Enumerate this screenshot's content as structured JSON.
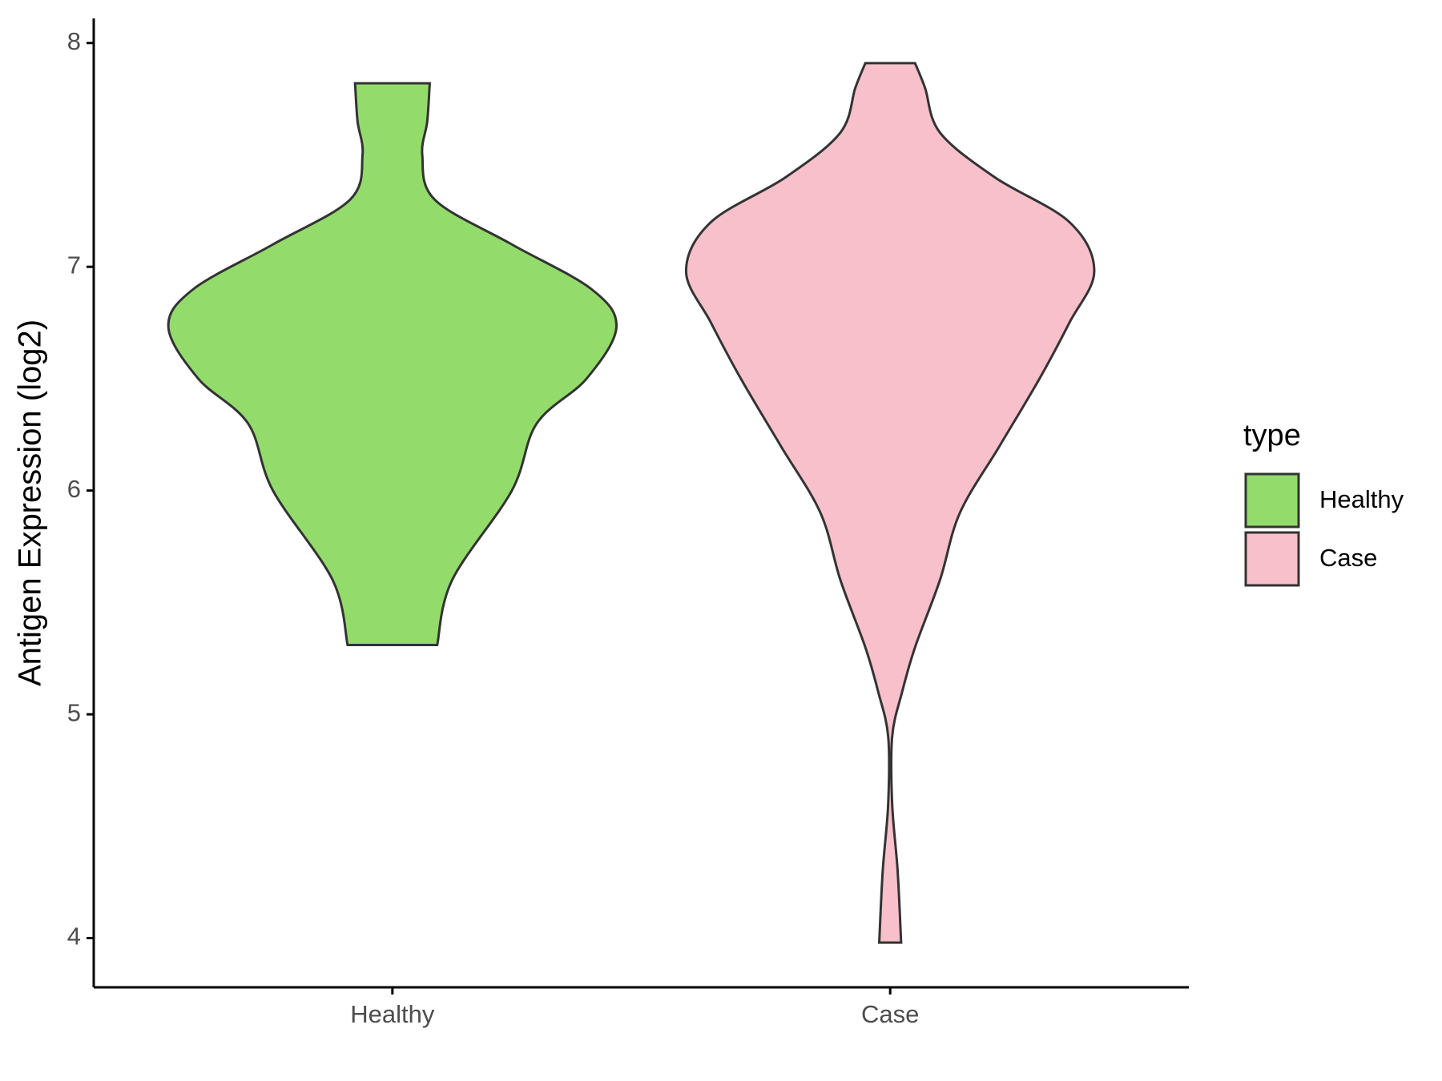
{
  "chart_data": {
    "type": "violin",
    "ylabel": "Antigen Expression (log2)",
    "categories": [
      "Healthy",
      "Case"
    ],
    "series": [
      {
        "name": "Healthy",
        "color": "#93dc6b",
        "y": [
          5.31,
          5.6,
          6.0,
          6.3,
          6.5,
          6.73,
          6.9,
          7.1,
          7.3,
          7.5,
          7.65,
          7.82
        ],
        "widths": [
          0.09,
          0.12,
          0.24,
          0.29,
          0.39,
          0.45,
          0.4,
          0.24,
          0.085,
          0.06,
          0.07,
          0.075
        ]
      },
      {
        "name": "Case",
        "color": "#f7c0cb",
        "y": [
          3.98,
          4.3,
          4.6,
          4.9,
          5.1,
          5.3,
          5.6,
          5.9,
          6.2,
          6.5,
          6.75,
          6.98,
          7.2,
          7.4,
          7.6,
          7.8,
          7.91
        ],
        "widths": [
          0.022,
          0.015,
          0.004,
          0.004,
          0.024,
          0.05,
          0.1,
          0.14,
          0.22,
          0.3,
          0.36,
          0.41,
          0.36,
          0.21,
          0.1,
          0.07,
          0.05
        ]
      }
    ],
    "ylim": [
      3.78,
      8.11
    ],
    "yticks": [
      4,
      5,
      6,
      7,
      8
    ],
    "legend_title": "type",
    "legend": "right"
  }
}
